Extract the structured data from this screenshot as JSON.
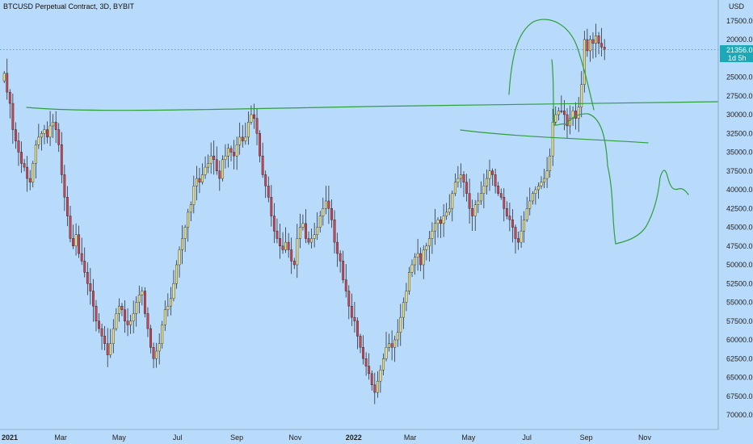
{
  "header": {
    "title": "BTCUSD Perpetual Contract, 3D, BYBIT"
  },
  "price_tag": {
    "price": "21356.0",
    "countdown": "1d 5h"
  },
  "colors": {
    "background": "#b9dbfb",
    "up_candle": "#f2e27d",
    "down_candle": "#cf4455",
    "wick": "#1a1a1a",
    "drawing": "#2f9e3c",
    "price_line": "#1ba9b8",
    "price_tag": "#1ba9b8",
    "axis_bg": "#b9dbfb"
  },
  "chart_data": {
    "type": "candlestick",
    "title": "BTCUSD Perpetual Contract, 3D, BYBIT",
    "y_axis_unit": "USD",
    "y_axis_inverted": true,
    "ylim": [
      16000,
      71000
    ],
    "y_ticks": [
      "17500.0",
      "20000.0",
      "22500.0",
      "25000.0",
      "27500.0",
      "30000.0",
      "32500.0",
      "35000.0",
      "37500.0",
      "40000.0",
      "42500.0",
      "45000.0",
      "47500.0",
      "50000.0",
      "52500.0",
      "55000.0",
      "57500.0",
      "60000.0",
      "62500.0",
      "65000.0",
      "67500.0",
      "70000.0"
    ],
    "x_ticks": [
      "2021",
      "Mar",
      "May",
      "Jul",
      "Sep",
      "Nov",
      "2022",
      "Mar",
      "May",
      "Jul",
      "Sep",
      "Nov"
    ],
    "x_tick_dates": [
      "2021-01-01",
      "2021-03-01",
      "2021-05-01",
      "2021-07-01",
      "2021-09-01",
      "2021-11-01",
      "2022-01-01",
      "2022-03-01",
      "2022-05-01",
      "2022-07-01",
      "2022-09-01",
      "2022-11-01"
    ],
    "x_start": "2020-12-31",
    "bar_days": 3,
    "last_price": 21356.0,
    "closes": [
      24500,
      27000,
      28500,
      32000,
      33500,
      35000,
      36500,
      37000,
      38500,
      39000,
      36500,
      34000,
      33000,
      32500,
      32000,
      33000,
      31500,
      31000,
      32000,
      34000,
      38000,
      41000,
      43500,
      46500,
      47500,
      46000,
      48500,
      49500,
      51000,
      52500,
      53500,
      55500,
      57500,
      58500,
      59500,
      60500,
      62000,
      60500,
      58500,
      56500,
      55500,
      56000,
      57500,
      58000,
      57500,
      56500,
      55000,
      54000,
      53500,
      56500,
      58500,
      61000,
      62500,
      61500,
      60500,
      58000,
      56000,
      55500,
      54500,
      52500,
      50000,
      48000,
      46500,
      45000,
      43000,
      42000,
      39500,
      38500,
      39000,
      38000,
      37000,
      36500,
      35500,
      36000,
      37500,
      38500,
      36000,
      35500,
      34500,
      35000,
      35500,
      34000,
      33000,
      33500,
      33000,
      31000,
      30000,
      30500,
      32500,
      35500,
      38000,
      39500,
      41000,
      43500,
      45500,
      46500,
      47500,
      48000,
      47000,
      48000,
      49500,
      50000,
      46500,
      45000,
      44500,
      46500,
      47000,
      46500,
      46000,
      45000,
      43500,
      42500,
      41500,
      42500,
      44000,
      47000,
      48500,
      49500,
      52000,
      53500,
      55500,
      57000,
      57500,
      59500,
      61000,
      62500,
      63500,
      64500,
      66000,
      67000,
      65500,
      64000,
      62500,
      61000,
      60500,
      61000,
      60000,
      59000,
      57000,
      55000,
      53500,
      51000,
      50000,
      49000,
      48500,
      50000,
      48000,
      47500,
      46500,
      45500,
      44500,
      44000,
      44500,
      43500,
      43000,
      42500,
      40500,
      39000,
      38500,
      38000,
      39000,
      40500,
      42500,
      43500,
      42000,
      41500,
      40500,
      39500,
      38500,
      37500,
      38000,
      39500,
      40500,
      41000,
      42500,
      43500,
      44000,
      45000,
      46500,
      47000,
      45500,
      44000,
      42500,
      41500,
      40500,
      40000,
      39500,
      39000,
      38500,
      37500,
      35500,
      31000,
      30000,
      29500,
      29500,
      30000,
      31500,
      30500,
      29500,
      30500,
      29000,
      26000,
      20000,
      21500,
      20000,
      20500,
      19500,
      20500,
      21000,
      21356
    ]
  }
}
